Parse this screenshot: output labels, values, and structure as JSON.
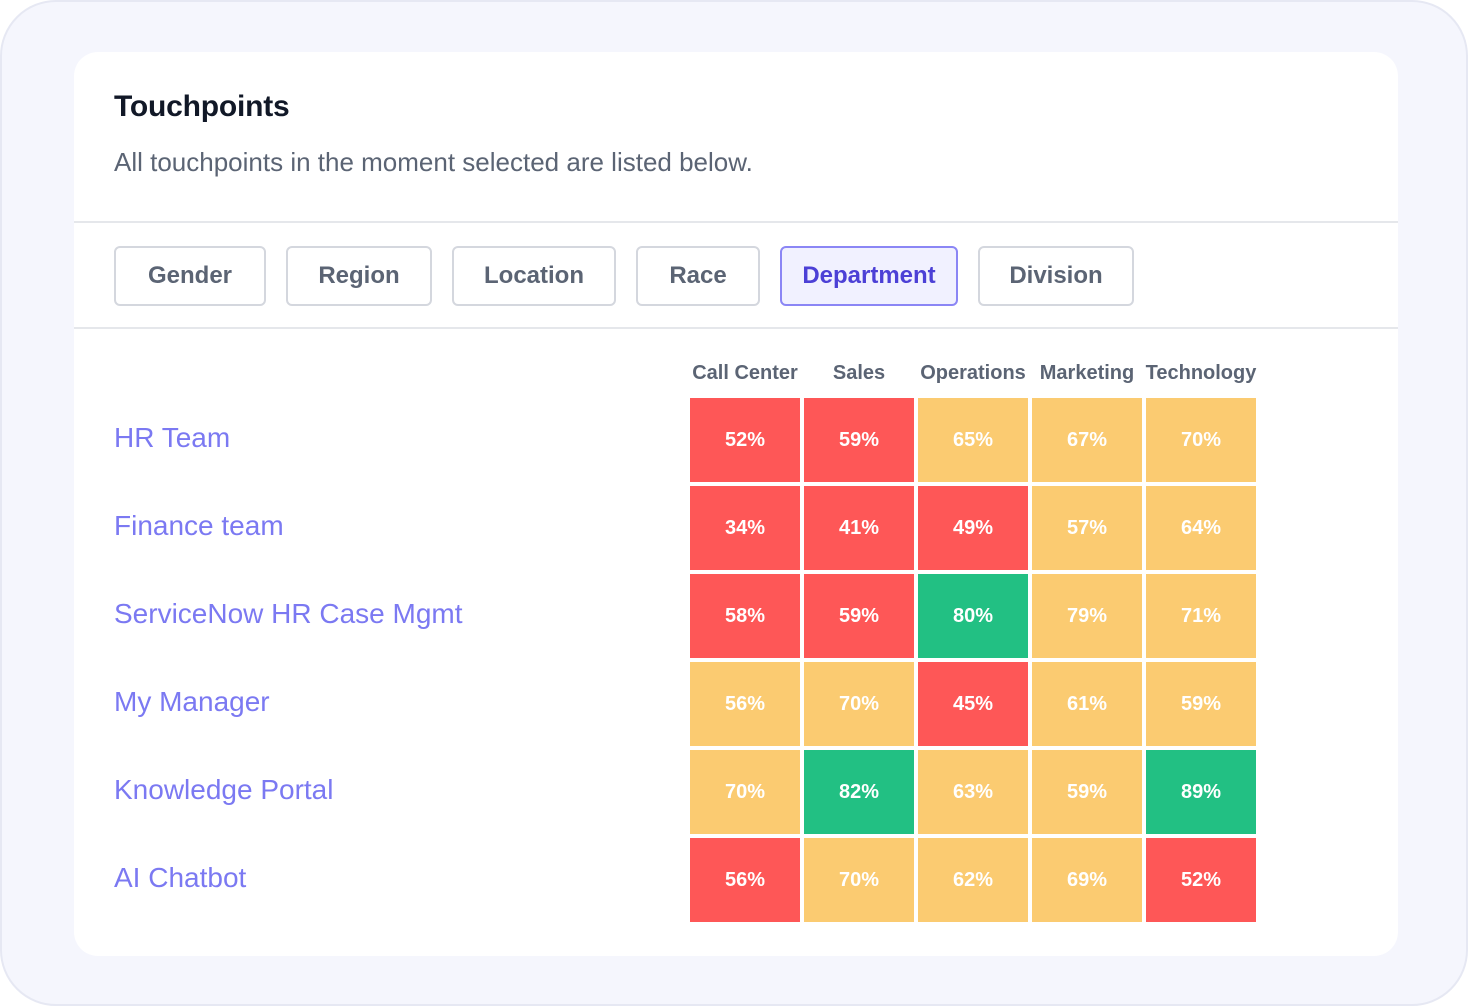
{
  "card": {
    "title": "Touchpoints",
    "subtitle": "All touchpoints in the moment selected are listed below."
  },
  "filters": [
    {
      "label": "Gender",
      "active": false
    },
    {
      "label": "Region",
      "active": false
    },
    {
      "label": "Location",
      "active": false
    },
    {
      "label": "Race",
      "active": false
    },
    {
      "label": "Department",
      "active": true
    },
    {
      "label": "Division",
      "active": false
    }
  ],
  "colors": {
    "low": "#fe5757",
    "mid": "#fbcb71",
    "high": "#22c083"
  },
  "chart_data": {
    "type": "heatmap",
    "columns": [
      "Call Center",
      "Sales",
      "Operations",
      "Marketing",
      "Technology"
    ],
    "rows": [
      "HR Team",
      "Finance team",
      "ServiceNow HR Case Mgmt",
      "My Manager",
      "Knowledge Portal",
      "AI Chatbot"
    ],
    "values": [
      [
        52,
        59,
        65,
        67,
        70
      ],
      [
        34,
        41,
        49,
        57,
        64
      ],
      [
        58,
        59,
        80,
        79,
        71
      ],
      [
        56,
        70,
        45,
        61,
        59
      ],
      [
        70,
        82,
        63,
        59,
        89
      ],
      [
        56,
        70,
        62,
        69,
        52
      ]
    ],
    "labels": [
      [
        "52%",
        "59%",
        "65%",
        "67%",
        "70%"
      ],
      [
        "34%",
        "41%",
        "49%",
        "57%",
        "64%"
      ],
      [
        "58%",
        "59%",
        "80%",
        "79%",
        "71%"
      ],
      [
        "56%",
        "70%",
        "45%",
        "61%",
        "59%"
      ],
      [
        "70%",
        "82%",
        "63%",
        "59%",
        "89%"
      ],
      [
        "56%",
        "70%",
        "62%",
        "69%",
        "52%"
      ]
    ],
    "levels": [
      [
        "low",
        "low",
        "mid",
        "mid",
        "mid"
      ],
      [
        "low",
        "low",
        "low",
        "mid",
        "mid"
      ],
      [
        "low",
        "low",
        "high",
        "mid",
        "mid"
      ],
      [
        "mid",
        "mid",
        "low",
        "mid",
        "mid"
      ],
      [
        "mid",
        "high",
        "mid",
        "mid",
        "high"
      ],
      [
        "low",
        "mid",
        "mid",
        "mid",
        "low"
      ]
    ]
  }
}
